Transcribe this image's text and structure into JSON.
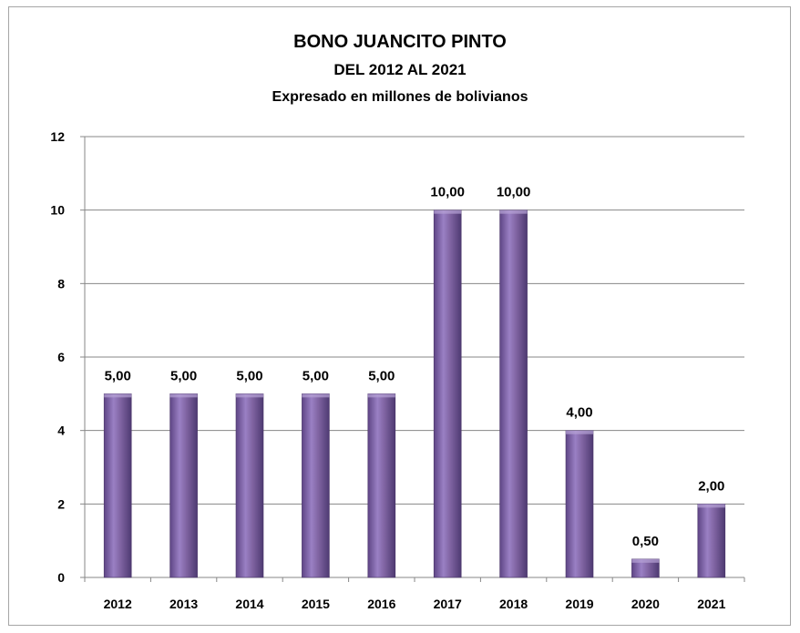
{
  "chart_data": {
    "type": "bar",
    "title": "BONO JUANCITO PINTO",
    "subtitle": "DEL 2012 AL 2021",
    "subtitle2": "Expresado en millones de bolivianos",
    "categories": [
      "2012",
      "2013",
      "2014",
      "2015",
      "2016",
      "2017",
      "2018",
      "2019",
      "2020",
      "2021"
    ],
    "values": [
      5,
      5,
      5,
      5,
      5,
      10,
      10,
      4,
      0.5,
      2
    ],
    "data_labels": [
      "5,00",
      "5,00",
      "5,00",
      "5,00",
      "5,00",
      "10,00",
      "10,00",
      "4,00",
      "0,50",
      "2,00"
    ],
    "ylim": [
      0,
      12
    ],
    "yticks": [
      "0",
      "2",
      "4",
      "6",
      "8",
      "10",
      "12"
    ],
    "grid": true,
    "legend": "none",
    "bar_color": "#8064a2"
  }
}
